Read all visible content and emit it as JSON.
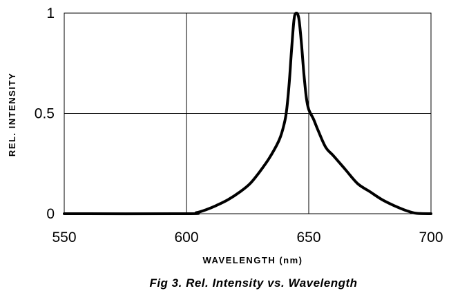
{
  "chart_data": {
    "type": "line",
    "title": "Fig 3. Rel. Intensity vs. Wavelength",
    "xlabel": "WAVELENGTH (nm)",
    "ylabel": "REL. INTENSITY",
    "xlim": [
      550,
      700
    ],
    "ylim": [
      0,
      1
    ],
    "x_ticks": [
      "550",
      "600",
      "650",
      "700"
    ],
    "y_ticks": [
      "0",
      "0.5",
      "1"
    ],
    "grid": true,
    "legend": "none",
    "series": [
      {
        "color": "#000000",
        "points": [
          [
            550,
            0
          ],
          [
            600,
            0
          ],
          [
            604,
            0.005
          ],
          [
            608,
            0.02
          ],
          [
            612,
            0.04
          ],
          [
            617,
            0.07
          ],
          [
            622,
            0.11
          ],
          [
            626,
            0.15
          ],
          [
            630,
            0.21
          ],
          [
            634,
            0.28
          ],
          [
            638,
            0.37
          ],
          [
            640,
            0.45
          ],
          [
            641,
            0.52
          ],
          [
            642,
            0.65
          ],
          [
            643,
            0.82
          ],
          [
            644,
            0.97
          ],
          [
            645,
            1.0
          ],
          [
            646,
            0.97
          ],
          [
            647,
            0.85
          ],
          [
            648,
            0.7
          ],
          [
            649,
            0.58
          ],
          [
            650,
            0.52
          ],
          [
            652,
            0.47
          ],
          [
            654,
            0.41
          ],
          [
            657,
            0.33
          ],
          [
            660,
            0.29
          ],
          [
            665,
            0.22
          ],
          [
            670,
            0.15
          ],
          [
            675,
            0.11
          ],
          [
            680,
            0.07
          ],
          [
            685,
            0.04
          ],
          [
            690,
            0.015
          ],
          [
            694,
            0.002
          ],
          [
            700,
            0
          ]
        ]
      }
    ]
  }
}
